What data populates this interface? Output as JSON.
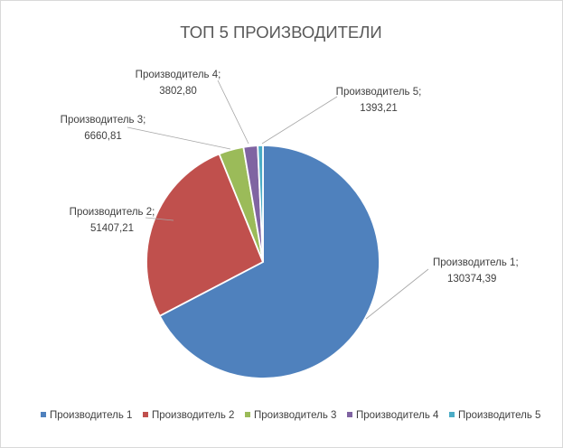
{
  "chart_data": {
    "type": "pie",
    "title": "ТОП 5 ПРОИЗВОДИТЕЛИ",
    "legend_position": "bottom",
    "slices": [
      {
        "name": "Производитель 1",
        "value": 130374.39,
        "data_label": "Производитель 1;",
        "value_label": "130374,39",
        "color": "#4f81bd"
      },
      {
        "name": "Производитель 2",
        "value": 51407.21,
        "data_label": "Производитель 2;",
        "value_label": "51407,21",
        "color": "#c0504d"
      },
      {
        "name": "Производитель 3",
        "value": 6660.81,
        "data_label": "Производитель 3;",
        "value_label": "6660,81",
        "color": "#9bbb59"
      },
      {
        "name": "Производитель 4",
        "value": 3802.8,
        "data_label": "Производитель 4;",
        "value_label": "3802,80",
        "color": "#8064a2"
      },
      {
        "name": "Производитель 5",
        "value": 1393.21,
        "data_label": "Производитель 5;",
        "value_label": "1393,21",
        "color": "#4bacc6"
      }
    ]
  }
}
